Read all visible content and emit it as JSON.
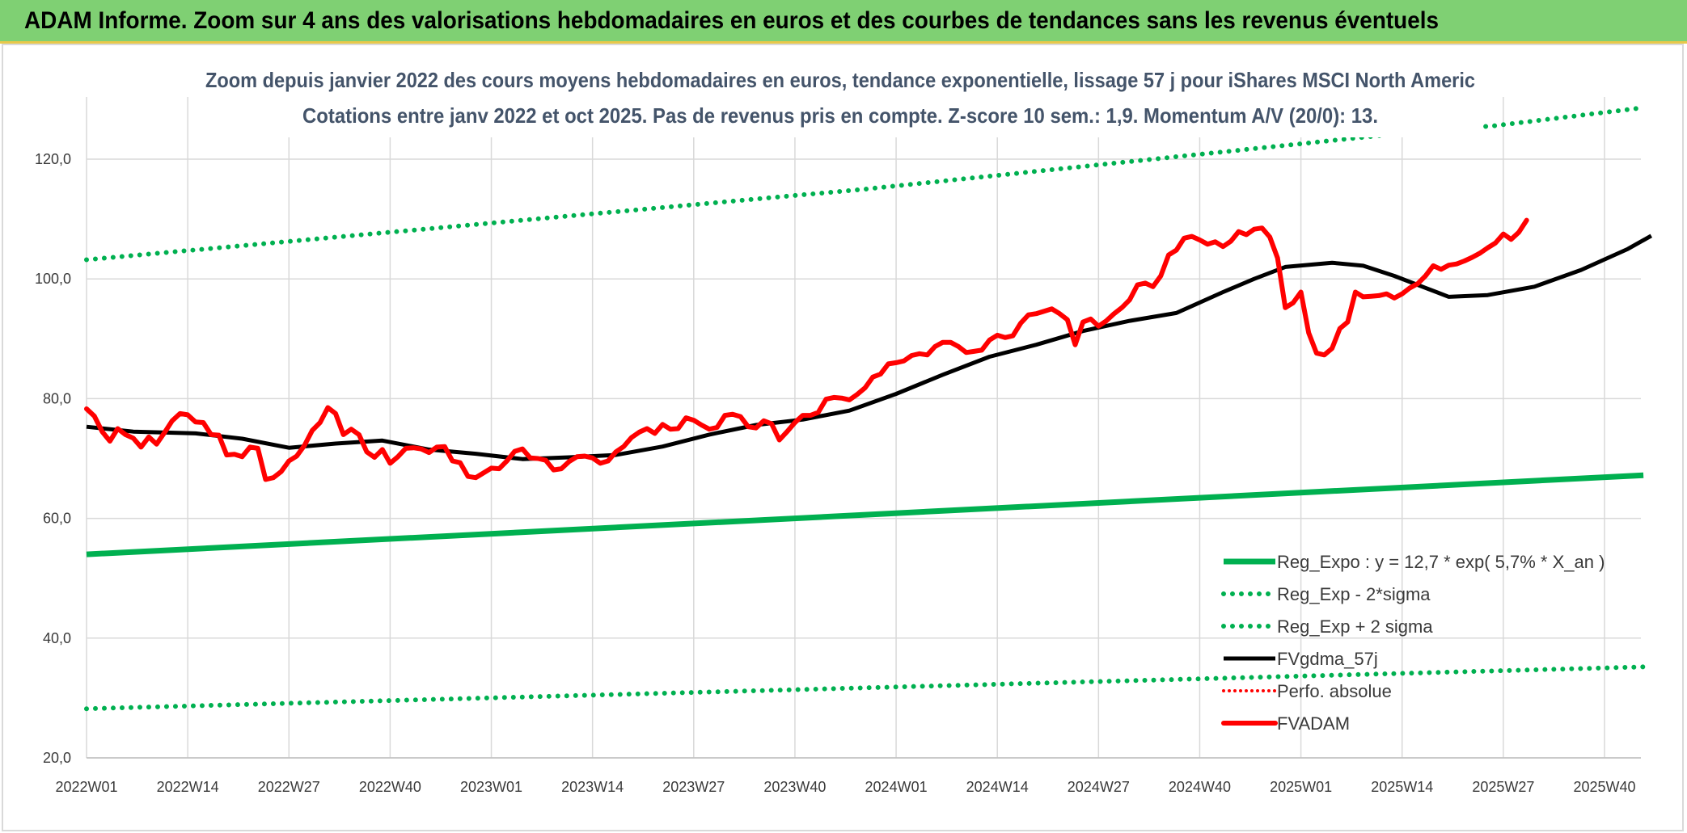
{
  "banner": {
    "title": "ADAM Informe. Zoom sur 4 ans des valorisations hebdomadaires en euros et des courbes de tendances sans les revenus éventuels"
  },
  "chart_data": {
    "type": "line",
    "title_line1": "Zoom depuis janvier 2022 des cours moyens hebdomadaires en euros, tendance exponentielle, lissage 57 j pour iShares MSCI North Americ",
    "title_line2": "Cotations entre janv 2022 et oct 2025. Pas de revenus pris en compte. Z-score 10 sem.: 1,9. Momentum A/V (20/0): 13.",
    "ylim": [
      20,
      130
    ],
    "y_ticks": [
      "20,0",
      "40,0",
      "60,0",
      "80,0",
      "100,0",
      "120,0"
    ],
    "y_tick_values": [
      20,
      40,
      60,
      80,
      100,
      120
    ],
    "x_ticks": [
      "2022W01",
      "2022W14",
      "2022W27",
      "2022W40",
      "2023W01",
      "2023W14",
      "2023W27",
      "2023W40",
      "2024W01",
      "2024W14",
      "2024W27",
      "2024W40",
      "2025W01",
      "2025W14",
      "2025W27",
      "2025W40"
    ],
    "x_tick_weeks": [
      0,
      13,
      26,
      39,
      52,
      65,
      78,
      91,
      104,
      117,
      130,
      143,
      156,
      169,
      182,
      195
    ],
    "week_count": 201,
    "grid": true,
    "legend_position": "bottom-right",
    "colors": {
      "regression": "#00b050",
      "sigma": "#00b050",
      "smooth": "#000000",
      "perf": "#ff0000",
      "price": "#ff0000"
    },
    "series": [
      {
        "name": "Reg_Expo : y = 12,7 * exp( 5,7% *  X_an )",
        "style": "solid-green-thick",
        "points": [
          [
            0,
            54.0
          ],
          [
            200,
            67.2
          ]
        ]
      },
      {
        "name": "Reg_Exp - 2*sigma",
        "style": "dotted-green",
        "points": [
          [
            0,
            28.2
          ],
          [
            200,
            35.2
          ]
        ]
      },
      {
        "name": "Reg_Exp + 2 sigma",
        "style": "dotted-green",
        "points": [
          [
            0,
            103.2
          ],
          [
            100,
            115.0
          ],
          [
            168,
            124.2
          ],
          [
            181,
            125.6
          ],
          [
            200,
            128.6
          ]
        ]
      },
      {
        "name": "FVgdma_57j",
        "style": "solid-black",
        "points": [
          [
            0,
            75.3
          ],
          [
            6,
            74.5
          ],
          [
            14,
            74.2
          ],
          [
            20,
            73.3
          ],
          [
            26,
            71.8
          ],
          [
            32,
            72.5
          ],
          [
            38,
            73.0
          ],
          [
            44,
            71.5
          ],
          [
            50,
            70.8
          ],
          [
            56,
            69.9
          ],
          [
            62,
            70.2
          ],
          [
            68,
            70.6
          ],
          [
            74,
            72.0
          ],
          [
            80,
            74.0
          ],
          [
            86,
            75.6
          ],
          [
            92,
            76.5
          ],
          [
            98,
            78.0
          ],
          [
            104,
            80.8
          ],
          [
            110,
            84.0
          ],
          [
            116,
            87.0
          ],
          [
            122,
            89.0
          ],
          [
            128,
            91.3
          ],
          [
            134,
            93.0
          ],
          [
            140,
            94.3
          ],
          [
            146,
            97.8
          ],
          [
            150,
            100.0
          ],
          [
            154,
            102.0
          ],
          [
            160,
            102.7
          ],
          [
            164,
            102.2
          ],
          [
            168,
            100.5
          ],
          [
            172,
            98.5
          ],
          [
            175,
            97.0
          ],
          [
            180,
            97.3
          ],
          [
            186,
            98.7
          ],
          [
            192,
            101.5
          ],
          [
            198,
            105.0
          ],
          [
            201,
            107.2
          ]
        ]
      },
      {
        "name": "Perfo. absolue",
        "style": "dotted-red",
        "points": []
      },
      {
        "name": "FVADAM",
        "style": "solid-red-thick",
        "points": [
          [
            0,
            78.3
          ],
          [
            1,
            77.1
          ],
          [
            2,
            74.5
          ],
          [
            3,
            72.9
          ],
          [
            4,
            75.0
          ],
          [
            5,
            74.0
          ],
          [
            6,
            73.4
          ],
          [
            7,
            71.9
          ],
          [
            8,
            73.6
          ],
          [
            9,
            72.4
          ],
          [
            10,
            74.3
          ],
          [
            11,
            76.3
          ],
          [
            12,
            77.5
          ],
          [
            13,
            77.3
          ],
          [
            14,
            76.1
          ],
          [
            15,
            76.0
          ],
          [
            16,
            74.0
          ],
          [
            17,
            73.9
          ],
          [
            18,
            70.6
          ],
          [
            19,
            70.7
          ],
          [
            20,
            70.3
          ],
          [
            21,
            71.9
          ],
          [
            22,
            71.7
          ],
          [
            23,
            66.5
          ],
          [
            24,
            66.8
          ],
          [
            25,
            67.8
          ],
          [
            26,
            69.6
          ],
          [
            27,
            70.4
          ],
          [
            28,
            72.2
          ],
          [
            29,
            74.7
          ],
          [
            30,
            76.0
          ],
          [
            31,
            78.5
          ],
          [
            32,
            77.5
          ],
          [
            33,
            74.0
          ],
          [
            34,
            74.9
          ],
          [
            35,
            74.0
          ],
          [
            36,
            71.1
          ],
          [
            37,
            70.2
          ],
          [
            38,
            71.5
          ],
          [
            39,
            69.2
          ],
          [
            40,
            70.3
          ],
          [
            41,
            71.7
          ],
          [
            42,
            71.8
          ],
          [
            43,
            71.6
          ],
          [
            44,
            71.0
          ],
          [
            45,
            71.9
          ],
          [
            46,
            72.0
          ],
          [
            47,
            69.6
          ],
          [
            48,
            69.3
          ],
          [
            49,
            67.0
          ],
          [
            50,
            66.8
          ],
          [
            51,
            67.6
          ],
          [
            52,
            68.4
          ],
          [
            53,
            68.3
          ],
          [
            54,
            69.6
          ],
          [
            55,
            71.2
          ],
          [
            56,
            71.6
          ],
          [
            57,
            70.1
          ],
          [
            58,
            70.0
          ],
          [
            59,
            69.7
          ],
          [
            60,
            68.1
          ],
          [
            61,
            68.3
          ],
          [
            62,
            69.5
          ],
          [
            63,
            70.3
          ],
          [
            64,
            70.4
          ],
          [
            65,
            70.1
          ],
          [
            66,
            69.2
          ],
          [
            67,
            69.6
          ],
          [
            68,
            71.1
          ],
          [
            69,
            72.0
          ],
          [
            70,
            73.5
          ],
          [
            71,
            74.4
          ],
          [
            72,
            75.0
          ],
          [
            73,
            74.2
          ],
          [
            74,
            75.7
          ],
          [
            75,
            74.9
          ],
          [
            76,
            75.0
          ],
          [
            77,
            76.8
          ],
          [
            78,
            76.4
          ],
          [
            79,
            75.6
          ],
          [
            80,
            74.9
          ],
          [
            81,
            75.2
          ],
          [
            82,
            77.2
          ],
          [
            83,
            77.4
          ],
          [
            84,
            77.0
          ],
          [
            85,
            75.3
          ],
          [
            86,
            75.1
          ],
          [
            87,
            76.3
          ],
          [
            88,
            75.8
          ],
          [
            89,
            73.1
          ],
          [
            90,
            74.5
          ],
          [
            91,
            76.0
          ],
          [
            92,
            77.2
          ],
          [
            93,
            77.2
          ],
          [
            94,
            77.7
          ],
          [
            95,
            79.9
          ],
          [
            96,
            80.2
          ],
          [
            97,
            80.1
          ],
          [
            98,
            79.8
          ],
          [
            99,
            80.7
          ],
          [
            100,
            81.8
          ],
          [
            101,
            83.6
          ],
          [
            102,
            84.1
          ],
          [
            103,
            85.8
          ],
          [
            104,
            86.0
          ],
          [
            105,
            86.3
          ],
          [
            106,
            87.2
          ],
          [
            107,
            87.5
          ],
          [
            108,
            87.3
          ],
          [
            109,
            88.7
          ],
          [
            110,
            89.4
          ],
          [
            111,
            89.4
          ],
          [
            112,
            88.7
          ],
          [
            113,
            87.7
          ],
          [
            114,
            87.9
          ],
          [
            115,
            88.1
          ],
          [
            116,
            89.8
          ],
          [
            117,
            90.6
          ],
          [
            118,
            90.2
          ],
          [
            119,
            90.5
          ],
          [
            120,
            92.6
          ],
          [
            121,
            94.0
          ],
          [
            122,
            94.2
          ],
          [
            123,
            94.6
          ],
          [
            124,
            95.0
          ],
          [
            125,
            94.2
          ],
          [
            126,
            93.2
          ],
          [
            127,
            89.0
          ],
          [
            128,
            92.8
          ],
          [
            129,
            93.3
          ],
          [
            130,
            92.1
          ],
          [
            131,
            93.0
          ],
          [
            132,
            94.2
          ],
          [
            133,
            95.2
          ],
          [
            134,
            96.5
          ],
          [
            135,
            99.0
          ],
          [
            136,
            99.3
          ],
          [
            137,
            98.7
          ],
          [
            138,
            100.5
          ],
          [
            139,
            104.0
          ],
          [
            140,
            104.8
          ],
          [
            141,
            106.8
          ],
          [
            142,
            107.1
          ],
          [
            143,
            106.5
          ],
          [
            144,
            105.8
          ],
          [
            145,
            106.2
          ],
          [
            146,
            105.4
          ],
          [
            147,
            106.3
          ],
          [
            148,
            107.9
          ],
          [
            149,
            107.4
          ],
          [
            150,
            108.3
          ],
          [
            151,
            108.5
          ],
          [
            152,
            107.0
          ],
          [
            153,
            103.5
          ],
          [
            154,
            95.2
          ],
          [
            155,
            96.0
          ],
          [
            156,
            97.8
          ],
          [
            157,
            91.0
          ],
          [
            158,
            87.6
          ],
          [
            159,
            87.3
          ],
          [
            160,
            88.4
          ],
          [
            161,
            91.7
          ],
          [
            162,
            92.8
          ],
          [
            163,
            97.8
          ],
          [
            164,
            97.0
          ],
          [
            165,
            97.1
          ],
          [
            166,
            97.2
          ],
          [
            167,
            97.5
          ],
          [
            168,
            96.8
          ],
          [
            169,
            97.5
          ],
          [
            170,
            98.5
          ],
          [
            171,
            99.2
          ],
          [
            172,
            100.5
          ],
          [
            173,
            102.2
          ],
          [
            174,
            101.6
          ],
          [
            175,
            102.3
          ],
          [
            176,
            102.5
          ],
          [
            177,
            103.0
          ],
          [
            178,
            103.6
          ],
          [
            179,
            104.3
          ],
          [
            180,
            105.2
          ],
          [
            181,
            106.0
          ],
          [
            182,
            107.5
          ],
          [
            183,
            106.6
          ],
          [
            184,
            107.8
          ],
          [
            185,
            109.8
          ]
        ]
      }
    ]
  }
}
